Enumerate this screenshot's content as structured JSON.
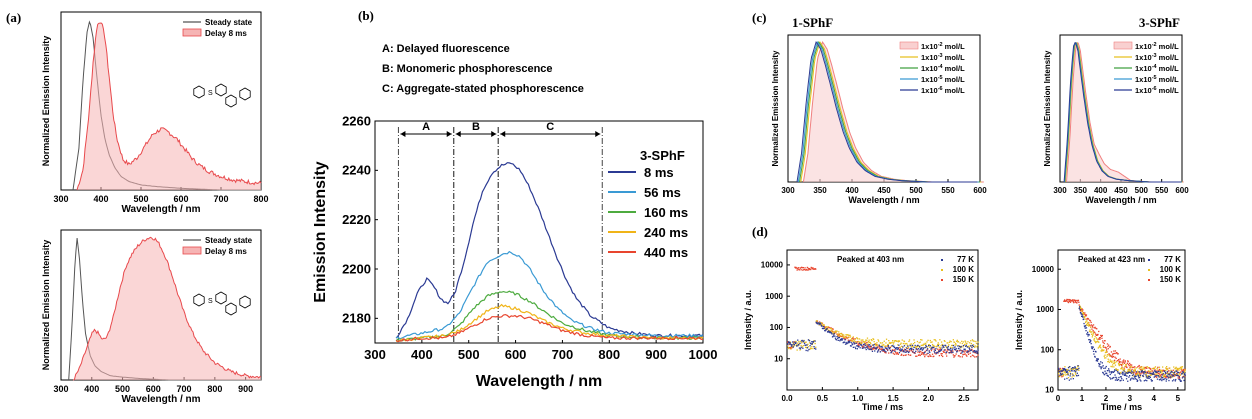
{
  "panel_labels": {
    "a": "(a)",
    "b": "(b)",
    "c": "(c)",
    "d": "(d)"
  },
  "legend_labels": {
    "steady": "Steady state",
    "delay": "Delay 8 ms"
  },
  "chart_data": [
    {
      "id": "a1",
      "type": "line",
      "xlabel": "Wavelength / nm",
      "ylabel": "Normalized Emission Intensity",
      "xlim": [
        300,
        800
      ],
      "ylim": [
        0,
        1.05
      ],
      "xticks": [
        300,
        400,
        500,
        600,
        700,
        800
      ],
      "legend": "top-right",
      "series": [
        {
          "name": "Steady state",
          "color": "#555555",
          "x": [
            330,
            345,
            355,
            365,
            372,
            380,
            390,
            400,
            410,
            420,
            435,
            450,
            470,
            500,
            540,
            600,
            700,
            800
          ],
          "y": [
            0.0,
            0.25,
            0.65,
            0.93,
            1.0,
            0.9,
            0.66,
            0.44,
            0.3,
            0.21,
            0.13,
            0.08,
            0.05,
            0.03,
            0.02,
            0.01,
            0.0,
            0.0
          ]
        },
        {
          "name": "Delay 8 ms",
          "color": "#e8494c",
          "fill": true,
          "x": [
            340,
            355,
            370,
            380,
            390,
            400,
            410,
            420,
            430,
            440,
            455,
            470,
            490,
            510,
            530,
            550,
            570,
            590,
            610,
            630,
            650,
            670,
            700,
            730,
            760,
            800
          ],
          "y": [
            0.0,
            0.12,
            0.45,
            0.75,
            0.97,
            1.0,
            0.9,
            0.68,
            0.45,
            0.3,
            0.18,
            0.15,
            0.19,
            0.26,
            0.33,
            0.36,
            0.34,
            0.3,
            0.24,
            0.18,
            0.14,
            0.11,
            0.08,
            0.06,
            0.05,
            0.04
          ]
        }
      ]
    },
    {
      "id": "a2",
      "type": "line",
      "xlabel": "Wavelength / nm",
      "ylabel": "Normalized Emission Intensity",
      "xlim": [
        300,
        950
      ],
      "ylim": [
        0,
        1.05
      ],
      "xticks": [
        300,
        400,
        500,
        600,
        700,
        800,
        900
      ],
      "legend": "top-right",
      "series": [
        {
          "name": "Steady state",
          "color": "#555555",
          "x": [
            325,
            335,
            345,
            352,
            360,
            370,
            380,
            395,
            410,
            430,
            460,
            500,
            560,
            650,
            800,
            950
          ],
          "y": [
            0.0,
            0.35,
            0.8,
            1.0,
            0.85,
            0.55,
            0.32,
            0.17,
            0.1,
            0.06,
            0.03,
            0.02,
            0.01,
            0.0,
            0.0,
            0.0
          ]
        },
        {
          "name": "Delay 8 ms",
          "color": "#e8494c",
          "fill": true,
          "x": [
            340,
            360,
            380,
            400,
            410,
            420,
            435,
            450,
            470,
            490,
            510,
            530,
            550,
            570,
            590,
            605,
            620,
            640,
            660,
            680,
            700,
            730,
            760,
            800,
            850,
            900,
            950
          ],
          "y": [
            0.0,
            0.08,
            0.2,
            0.32,
            0.35,
            0.33,
            0.28,
            0.3,
            0.44,
            0.63,
            0.79,
            0.88,
            0.94,
            0.98,
            1.0,
            0.99,
            0.95,
            0.86,
            0.74,
            0.6,
            0.47,
            0.32,
            0.21,
            0.12,
            0.06,
            0.03,
            0.02
          ]
        }
      ]
    },
    {
      "id": "b",
      "type": "line",
      "xlabel": "Wavelength / nm",
      "ylabel": "Emission Intensity",
      "xlim": [
        300,
        1000
      ],
      "ylim": [
        2170,
        2260
      ],
      "xticks": [
        300,
        400,
        500,
        600,
        700,
        800,
        900,
        1000
      ],
      "yticks": [
        2180,
        2200,
        2220,
        2240,
        2260
      ],
      "legend_title": "3-SPhF",
      "legend": "top-right",
      "annotations": {
        "notes": [
          "A: Delayed fluorescence",
          "B: Monomeric phosphorescence",
          "C: Aggregate-stated phosphorescence"
        ],
        "regions": [
          {
            "label": "A",
            "x0": 350,
            "x1": 468
          },
          {
            "label": "B",
            "x0": 468,
            "x1": 563
          },
          {
            "label": "C",
            "x0": 563,
            "x1": 785
          }
        ]
      },
      "series": [
        {
          "name": "8 ms",
          "color": "#2b3a93",
          "x": [
            345,
            370,
            390,
            410,
            425,
            440,
            455,
            470,
            490,
            510,
            530,
            550,
            570,
            590,
            610,
            630,
            650,
            670,
            690,
            710,
            730,
            760,
            800,
            850,
            900,
            950,
            1000
          ],
          "y": [
            2172,
            2180,
            2190,
            2196,
            2193,
            2188,
            2186,
            2190,
            2203,
            2219,
            2232,
            2239,
            2242,
            2243,
            2240,
            2233,
            2224,
            2214,
            2204,
            2195,
            2188,
            2181,
            2176,
            2174,
            2173,
            2173,
            2173
          ]
        },
        {
          "name": "56 ms",
          "color": "#3a9ad4",
          "x": [
            345,
            400,
            450,
            480,
            510,
            540,
            570,
            590,
            610,
            630,
            660,
            690,
            720,
            760,
            800,
            900,
            1000
          ],
          "y": [
            2172,
            2174,
            2176,
            2182,
            2193,
            2203,
            2206,
            2207,
            2205,
            2200,
            2191,
            2184,
            2179,
            2176,
            2174,
            2173,
            2173
          ]
        },
        {
          "name": "160 ms",
          "color": "#4dab3f",
          "x": [
            345,
            400,
            450,
            480,
            510,
            540,
            570,
            600,
            630,
            660,
            700,
            750,
            800,
            900,
            1000
          ],
          "y": [
            2171,
            2172,
            2173,
            2177,
            2184,
            2189,
            2191,
            2190,
            2187,
            2183,
            2178,
            2175,
            2173,
            2172,
            2172
          ]
        },
        {
          "name": "240 ms",
          "color": "#f0b418",
          "x": [
            345,
            400,
            450,
            480,
            510,
            540,
            570,
            600,
            630,
            660,
            700,
            750,
            800,
            900,
            1000
          ],
          "y": [
            2171,
            2172,
            2173,
            2175,
            2179,
            2183,
            2185,
            2184,
            2182,
            2179,
            2176,
            2174,
            2173,
            2172,
            2172
          ]
        },
        {
          "name": "440 ms",
          "color": "#e8452e",
          "x": [
            345,
            400,
            450,
            480,
            510,
            540,
            570,
            600,
            630,
            660,
            700,
            750,
            800,
            900,
            1000
          ],
          "y": [
            2171,
            2172,
            2172,
            2174,
            2177,
            2180,
            2181,
            2181,
            2180,
            2178,
            2175,
            2173,
            2172,
            2172,
            2172
          ]
        }
      ]
    },
    {
      "id": "c1",
      "type": "line",
      "title": "1-SPhF",
      "xlabel": "Wavelength / nm",
      "ylabel": "Normalized Emission Intensity",
      "xlim": [
        300,
        600
      ],
      "ylim": [
        0,
        1.05
      ],
      "xticks": [
        300,
        350,
        400,
        450,
        500,
        550,
        600
      ],
      "legend": "top-right",
      "series": [
        {
          "name": "1x10",
          "sup": "-2",
          "unit": " mol/L",
          "color": "#f08080",
          "fill": true,
          "dx": 6
        },
        {
          "name": "1x10",
          "sup": "-3",
          "unit": " mol/L",
          "color": "#e8c020",
          "dx": 2
        },
        {
          "name": "1x10",
          "sup": "-4",
          "unit": " mol/L",
          "color": "#40a040",
          "dx": 0
        },
        {
          "name": "1x10",
          "sup": "-5",
          "unit": " mol/L",
          "color": "#3a9ad4",
          "dx": -2
        },
        {
          "name": "1x10",
          "sup": "-6",
          "unit": " mol/L",
          "color": "#2b3a93",
          "dx": -4
        }
      ],
      "base_curve": {
        "x": [
          318,
          325,
          332,
          340,
          348,
          355,
          362,
          370,
          380,
          390,
          400,
          412,
          425,
          440,
          460,
          480,
          520,
          600
        ],
        "y": [
          0.0,
          0.2,
          0.55,
          0.88,
          1.0,
          0.95,
          0.84,
          0.7,
          0.52,
          0.36,
          0.24,
          0.14,
          0.08,
          0.04,
          0.02,
          0.01,
          0.0,
          0.0
        ]
      }
    },
    {
      "id": "c2",
      "type": "line",
      "title": "3-SPhF",
      "xlabel": "Wavelength / nm",
      "ylabel": "Normalized Emission Intensity",
      "xlim": [
        300,
        600
      ],
      "ylim": [
        0,
        1.05
      ],
      "xticks": [
        300,
        350,
        400,
        450,
        500,
        550,
        600
      ],
      "legend": "top-right",
      "series": [
        {
          "name": "1x10",
          "sup": "-2",
          "unit": " mol/L",
          "color": "#f08080",
          "fill": true,
          "dx": 4,
          "shoulder": true
        },
        {
          "name": "1x10",
          "sup": "-3",
          "unit": " mol/L",
          "color": "#e8c020",
          "dx": 1
        },
        {
          "name": "1x10",
          "sup": "-4",
          "unit": " mol/L",
          "color": "#40a040",
          "dx": 0
        },
        {
          "name": "1x10",
          "sup": "-5",
          "unit": " mol/L",
          "color": "#3a9ad4",
          "dx": -1
        },
        {
          "name": "1x10",
          "sup": "-6",
          "unit": " mol/L",
          "color": "#2b3a93",
          "dx": -2
        }
      ],
      "base_curve": {
        "x": [
          312,
          320,
          328,
          335,
          340,
          346,
          352,
          360,
          370,
          380,
          392,
          405,
          420,
          440,
          470,
          520,
          600
        ],
        "y": [
          0.0,
          0.3,
          0.72,
          0.97,
          1.0,
          0.94,
          0.8,
          0.62,
          0.42,
          0.27,
          0.15,
          0.08,
          0.04,
          0.02,
          0.01,
          0.0,
          0.0
        ]
      }
    },
    {
      "id": "d1",
      "type": "scatter",
      "annotation": "Peaked at 403 nm",
      "xlabel": "Time / ms",
      "ylabel": "Intensity / a.u.",
      "xlim": [
        0,
        2.7
      ],
      "ylog": true,
      "ylim": [
        1,
        30000
      ],
      "xticks": [
        0.0,
        0.5,
        1.0,
        1.5,
        2.0,
        2.5
      ],
      "yticks": [
        10,
        100,
        1000,
        10000
      ],
      "legend": "top-right",
      "series": [
        {
          "name": "77 K",
          "color": "#2b3a93"
        },
        {
          "name": "100 K",
          "color": "#e8c020"
        },
        {
          "name": "150 K",
          "color": "#e8452e"
        }
      ],
      "decay": {
        "t0": 0.4,
        "pulse": [
          0.1,
          0.4
        ],
        "pulse_level": 8000,
        "start": 160,
        "tail": [
          20,
          30,
          15
        ]
      }
    },
    {
      "id": "d2",
      "type": "scatter",
      "annotation": "Peaked at 423 nm",
      "xlabel": "Time / ms",
      "ylabel": "Intensity / a.u.",
      "xlim": [
        0,
        5.3
      ],
      "ylog": true,
      "ylim": [
        10,
        30000
      ],
      "xticks": [
        0,
        1,
        2,
        3,
        4,
        5
      ],
      "yticks": [
        10,
        100,
        1000,
        10000
      ],
      "legend": "top-right",
      "series": [
        {
          "name": "77 K",
          "color": "#2b3a93"
        },
        {
          "name": "100 K",
          "color": "#e8c020"
        },
        {
          "name": "150 K",
          "color": "#e8452e"
        }
      ],
      "decay": {
        "t0": 0.85,
        "pulse": [
          0.2,
          0.8
        ],
        "pulse_level": 1700,
        "start": 1200,
        "tail": [
          22,
          28,
          26
        ]
      }
    }
  ]
}
